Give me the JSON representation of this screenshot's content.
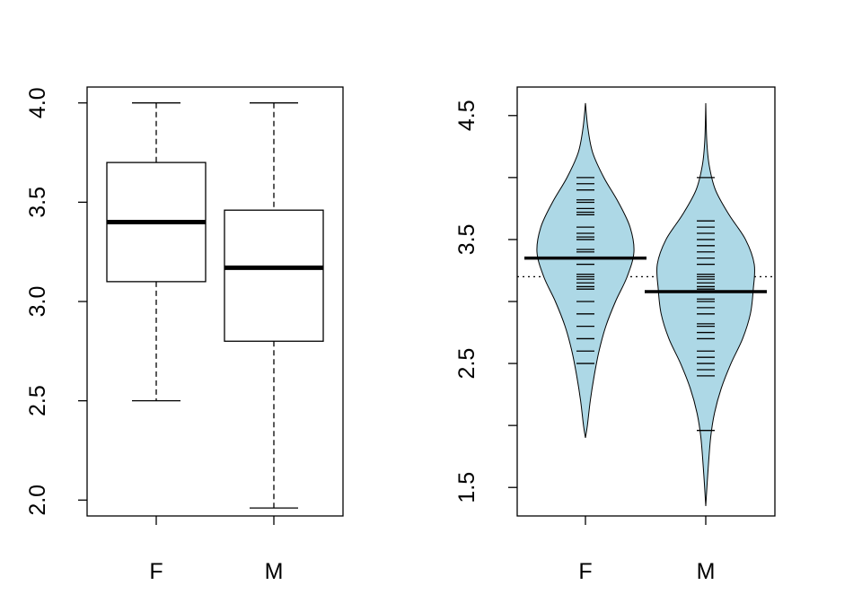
{
  "chart_data": [
    {
      "type": "boxplot",
      "categories": [
        "F",
        "M"
      ],
      "boxes": [
        {
          "name": "F",
          "whisker_low": 2.5,
          "q1": 3.1,
          "median": 3.4,
          "q3": 3.7,
          "whisker_high": 4.0
        },
        {
          "name": "M",
          "whisker_low": 1.96,
          "q1": 2.8,
          "median": 3.17,
          "q3": 3.46,
          "whisker_high": 4.0
        }
      ],
      "ylim": [
        1.92,
        4.08
      ],
      "yticks": [
        2.0,
        2.5,
        3.0,
        3.5,
        4.0
      ],
      "ytick_labels": [
        "2.0",
        "2.5",
        "3.0",
        "3.5",
        "4.0"
      ],
      "grid": false
    },
    {
      "type": "beanplot",
      "categories": [
        "F",
        "M"
      ],
      "overall_mean": 3.2,
      "beans": [
        {
          "name": "F",
          "mean": 3.35,
          "values": [
            2.5,
            2.6,
            2.7,
            2.8,
            2.9,
            3.0,
            3.1,
            3.12,
            3.15,
            3.18,
            3.2,
            3.22,
            3.3,
            3.35,
            3.4,
            3.42,
            3.5,
            3.52,
            3.55,
            3.6,
            3.7,
            3.72,
            3.75,
            3.8,
            3.82,
            3.9,
            3.95,
            4.0
          ],
          "density": [
            [
              1.9,
              0.0
            ],
            [
              2.0,
              0.04
            ],
            [
              2.2,
              0.1
            ],
            [
              2.4,
              0.18
            ],
            [
              2.6,
              0.28
            ],
            [
              2.8,
              0.42
            ],
            [
              3.0,
              0.62
            ],
            [
              3.2,
              0.86
            ],
            [
              3.4,
              1.0
            ],
            [
              3.6,
              0.92
            ],
            [
              3.8,
              0.68
            ],
            [
              4.0,
              0.38
            ],
            [
              4.2,
              0.15
            ],
            [
              4.4,
              0.05
            ],
            [
              4.6,
              0.0
            ]
          ]
        },
        {
          "name": "M",
          "mean": 3.08,
          "values": [
            1.96,
            2.4,
            2.45,
            2.5,
            2.55,
            2.6,
            2.7,
            2.75,
            2.8,
            2.82,
            2.9,
            2.95,
            3.0,
            3.02,
            3.1,
            3.12,
            3.15,
            3.18,
            3.2,
            3.22,
            3.3,
            3.35,
            3.4,
            3.45,
            3.5,
            3.55,
            3.6,
            3.65,
            4.0
          ],
          "density": [
            [
              1.35,
              0.0
            ],
            [
              1.6,
              0.04
            ],
            [
              1.9,
              0.1
            ],
            [
              2.1,
              0.18
            ],
            [
              2.3,
              0.32
            ],
            [
              2.5,
              0.52
            ],
            [
              2.7,
              0.76
            ],
            [
              2.9,
              0.92
            ],
            [
              3.1,
              0.98
            ],
            [
              3.3,
              1.0
            ],
            [
              3.5,
              0.82
            ],
            [
              3.7,
              0.48
            ],
            [
              3.9,
              0.2
            ],
            [
              4.1,
              0.07
            ],
            [
              4.3,
              0.02
            ],
            [
              4.6,
              0.0
            ]
          ]
        }
      ],
      "ylim": [
        1.27,
        4.73
      ],
      "yticks": [
        1.5,
        2.0,
        2.5,
        3.0,
        3.5,
        4.0,
        4.5
      ],
      "ytick_labels": [
        "1.5",
        "",
        "2.5",
        "",
        "3.5",
        "",
        "4.5"
      ],
      "fill_color": "#add8e6",
      "grid": false
    }
  ]
}
